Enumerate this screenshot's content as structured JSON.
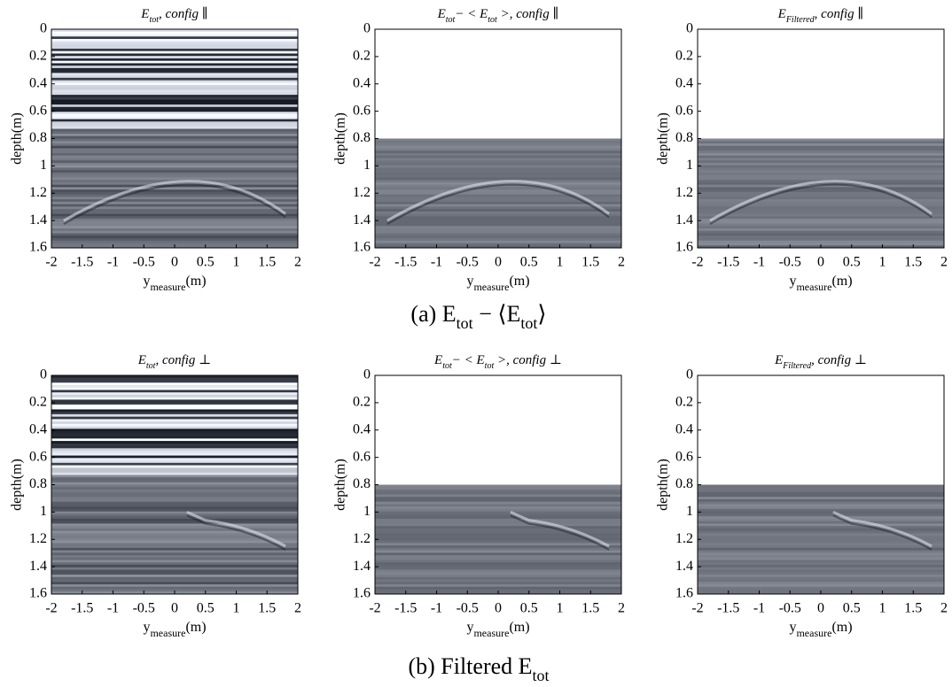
{
  "chart_data": [
    {
      "type": "image",
      "title": [
        "E",
        "tot",
        ", config ∥"
      ],
      "xlabel": [
        "y",
        "measure",
        "(m)"
      ],
      "ylabel": "depth(m)",
      "xlim": [
        -2,
        2
      ],
      "ylim": [
        0,
        1.6
      ],
      "y_reversed": true,
      "xticks": [
        -2,
        -1.5,
        -1,
        -0.5,
        0,
        0.5,
        1,
        1.5,
        2
      ],
      "yticks": [
        0,
        0.2,
        0.4,
        0.6,
        0.8,
        1,
        1.2,
        1.4,
        1.6
      ]
    },
    {
      "type": "image",
      "title": [
        "E",
        "tot",
        "− < E",
        "tot",
        " >, config ∥"
      ],
      "xlabel": [
        "y",
        "measure",
        "(m)"
      ],
      "ylabel": "depth(m)",
      "xlim": [
        -2,
        2
      ],
      "ylim": [
        0,
        1.6
      ],
      "y_reversed": true,
      "mask_depth": 0.8,
      "xticks": [
        -2,
        -1.5,
        -1,
        -0.5,
        0,
        0.5,
        1,
        1.5,
        2
      ],
      "yticks": [
        0,
        0.2,
        0.4,
        0.6,
        0.8,
        1,
        1.2,
        1.4,
        1.6
      ]
    },
    {
      "type": "image",
      "title": [
        "E",
        "Filtered",
        ", config ∥"
      ],
      "xlabel": [
        "y",
        "measure",
        "(m)"
      ],
      "ylabel": "depth(m)",
      "xlim": [
        -2,
        2
      ],
      "ylim": [
        0,
        1.6
      ],
      "y_reversed": true,
      "mask_depth": 0.8,
      "xticks": [
        -2,
        -1.5,
        -1,
        -0.5,
        0,
        0.5,
        1,
        1.5,
        2
      ],
      "yticks": [
        0,
        0.2,
        0.4,
        0.6,
        0.8,
        1,
        1.2,
        1.4,
        1.6
      ]
    },
    {
      "type": "image",
      "title": [
        "E",
        "tot",
        ", config ⊥"
      ],
      "xlabel": [
        "y",
        "measure",
        "(m)"
      ],
      "ylabel": "depth(m)",
      "xlim": [
        -2,
        2
      ],
      "ylim": [
        0,
        1.6
      ],
      "y_reversed": true,
      "xticks": [
        -2,
        -1.5,
        -1,
        -0.5,
        0,
        0.5,
        1,
        1.5,
        2
      ],
      "yticks": [
        0,
        0.2,
        0.4,
        0.6,
        0.8,
        1,
        1.2,
        1.4,
        1.6
      ]
    },
    {
      "type": "image",
      "title": [
        "E",
        "tot",
        "− < E",
        "tot",
        " >, config ⊥"
      ],
      "xlabel": [
        "y",
        "measure",
        "(m)"
      ],
      "ylabel": "depth(m)",
      "xlim": [
        -2,
        2
      ],
      "ylim": [
        0,
        1.6
      ],
      "y_reversed": true,
      "mask_depth": 0.8,
      "xticks": [
        -2,
        -1.5,
        -1,
        -0.5,
        0,
        0.5,
        1,
        1.5,
        2
      ],
      "yticks": [
        0,
        0.2,
        0.4,
        0.6,
        0.8,
        1,
        1.2,
        1.4,
        1.6
      ]
    },
    {
      "type": "image",
      "title": [
        "E",
        "Filtered",
        ", config ⊥"
      ],
      "xlabel": [
        "y",
        "measure",
        "(m)"
      ],
      "ylabel": "depth(m)",
      "xlim": [
        -2,
        2
      ],
      "ylim": [
        0,
        1.6
      ],
      "y_reversed": true,
      "mask_depth": 0.8,
      "xticks": [
        -2,
        -1.5,
        -1,
        -0.5,
        0,
        0.5,
        1,
        1.5,
        2
      ],
      "yticks": [
        0,
        0.2,
        0.4,
        0.6,
        0.8,
        1,
        1.2,
        1.4,
        1.6
      ]
    }
  ],
  "captions": [
    [
      "(a) E",
      "tot",
      " − ⟨E",
      "tot",
      "⟩"
    ],
    [
      "(b)  Filtered E",
      "tot"
    ]
  ]
}
